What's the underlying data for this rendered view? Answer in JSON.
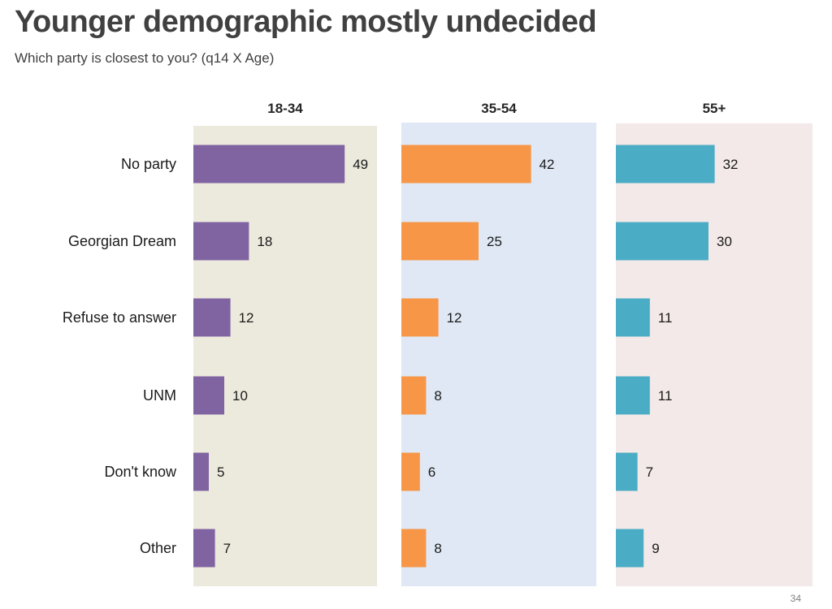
{
  "title": "Younger demographic mostly undecided",
  "subtitle": "Which party is closest to you? (q14 X Age)",
  "page_number": "34",
  "chart_data": {
    "type": "bar",
    "orientation": "horizontal",
    "title": "Younger demographic mostly undecided",
    "subtitle": "Which party is closest to you? (q14 X Age)",
    "categories": [
      "No party",
      "Georgian Dream",
      "Refuse to answer",
      "UNM",
      "Don't know",
      "Other"
    ],
    "xlim": [
      0,
      55
    ],
    "series": [
      {
        "name": "18-34",
        "color": "#8064a2",
        "background": "#ece9dd",
        "values": [
          49,
          18,
          12,
          10,
          5,
          7
        ]
      },
      {
        "name": "35-54",
        "color": "#f79646",
        "background": "#dfe8f4",
        "values": [
          42,
          25,
          12,
          8,
          6,
          8
        ]
      },
      {
        "name": "55+",
        "color": "#4bacc6",
        "background": "#f3e9e8",
        "values": [
          32,
          30,
          11,
          11,
          7,
          9
        ]
      }
    ]
  }
}
